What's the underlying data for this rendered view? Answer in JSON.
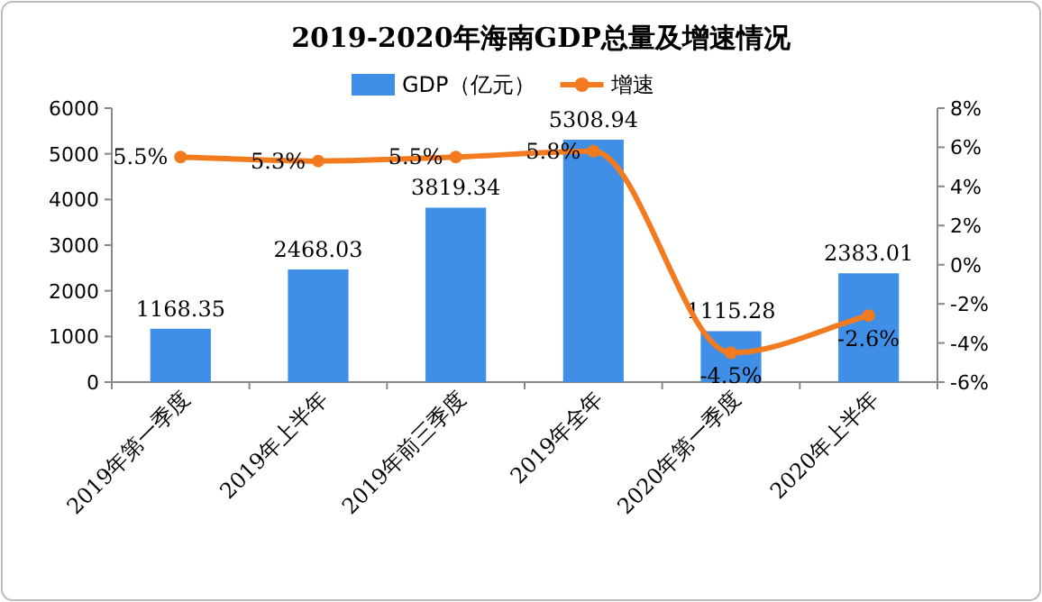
{
  "chart_data": {
    "type": "bar",
    "title": "2019-2020年海南GDP总量及增速情况",
    "categories": [
      "2019年第一季度",
      "2019年上半年",
      "2019年前三季度",
      "2019年全年",
      "2020年第一季度",
      "2020年上半年"
    ],
    "series": [
      {
        "name": "GDP（亿元）",
        "color": "#3f8fe6",
        "values": [
          1168.35,
          2468.03,
          3819.34,
          5308.94,
          1115.28,
          2383.01
        ],
        "value_labels": [
          "1168.35",
          "2468.03",
          "3819.34",
          "5308.94",
          "1115.28",
          "2383.01"
        ]
      },
      {
        "name": "增速",
        "type": "line",
        "axis": "y2",
        "color": "#f27b1f",
        "marker": "circle",
        "values": [
          5.5,
          5.3,
          5.5,
          5.8,
          -4.5,
          -2.6
        ],
        "value_labels": [
          "5.5%",
          "5.3%",
          "5.5%",
          "5.8%",
          "-4.5%",
          "-2.6%"
        ]
      }
    ],
    "ylim": [
      0,
      6000
    ],
    "yticks": [
      0,
      1000,
      2000,
      3000,
      4000,
      5000,
      6000
    ],
    "y2lim": [
      -6,
      8
    ],
    "y2ticks": [
      {
        "value": -6,
        "label": "-6%"
      },
      {
        "value": -4,
        "label": "-4%"
      },
      {
        "value": -2,
        "label": "-2%"
      },
      {
        "value": 0,
        "label": "0%"
      },
      {
        "value": 2,
        "label": "2%"
      },
      {
        "value": 4,
        "label": "4%"
      },
      {
        "value": 6,
        "label": "6%"
      },
      {
        "value": 8,
        "label": "8%"
      }
    ],
    "legend": "top",
    "grid": false
  }
}
